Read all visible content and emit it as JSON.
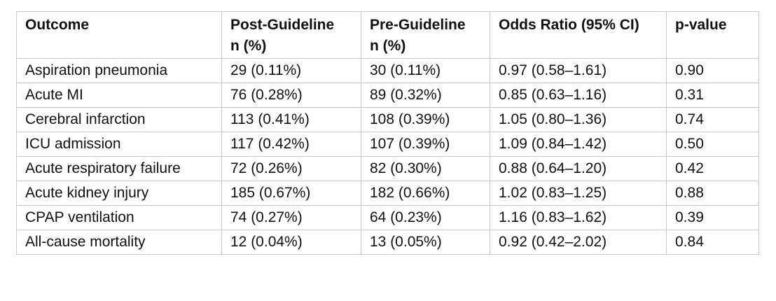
{
  "table": {
    "headers": [
      {
        "line1": "Outcome",
        "line2": ""
      },
      {
        "line1": "Post-Guideline",
        "line2": "n (%)"
      },
      {
        "line1": "Pre-Guideline",
        "line2": "n (%)"
      },
      {
        "line1": "Odds Ratio (95% CI)",
        "line2": ""
      },
      {
        "line1": "p-value",
        "line2": ""
      }
    ],
    "rows": [
      {
        "outcome": "Aspiration pneumonia",
        "post": "29 (0.11%)",
        "pre": "30 (0.11%)",
        "or": "0.97 (0.58–1.61)",
        "p": "0.90"
      },
      {
        "outcome": "Acute MI",
        "post": "76 (0.28%)",
        "pre": "89 (0.32%)",
        "or": "0.85 (0.63–1.16)",
        "p": "0.31"
      },
      {
        "outcome": "Cerebral infarction",
        "post": "113 (0.41%)",
        "pre": "108 (0.39%)",
        "or": "1.05 (0.80–1.36)",
        "p": "0.74"
      },
      {
        "outcome": "ICU admission",
        "post": "117 (0.42%)",
        "pre": "107 (0.39%)",
        "or": "1.09 (0.84–1.42)",
        "p": "0.50"
      },
      {
        "outcome": "Acute respiratory failure",
        "post": "72 (0.26%)",
        "pre": "82 (0.30%)",
        "or": "0.88 (0.64–1.20)",
        "p": "0.42"
      },
      {
        "outcome": "Acute kidney injury",
        "post": "185 (0.67%)",
        "pre": "182 (0.66%)",
        "or": "1.02 (0.83–1.25)",
        "p": "0.88"
      },
      {
        "outcome": "CPAP ventilation",
        "post": "74 (0.27%)",
        "pre": "64 (0.23%)",
        "or": "1.16 (0.83–1.62)",
        "p": "0.39"
      },
      {
        "outcome": "All-cause mortality",
        "post": "12 (0.04%)",
        "pre": "13 (0.05%)",
        "or": "0.92 (0.42–2.02)",
        "p": "0.84"
      }
    ]
  }
}
